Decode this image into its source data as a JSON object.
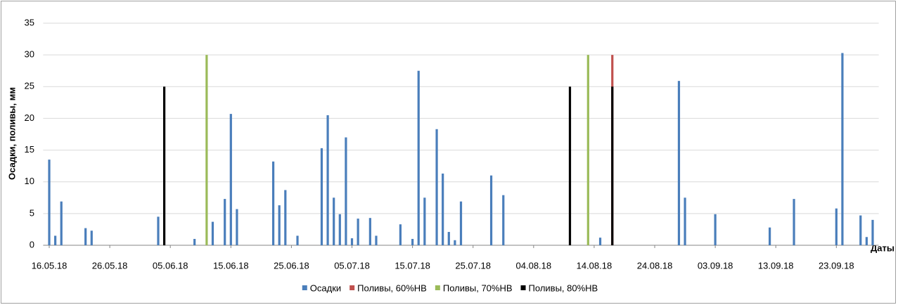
{
  "chart_data": {
    "type": "bar",
    "ylabel": "Осадки, поливы, мм",
    "xlabel": "Даты",
    "xlim": [
      "15.05.18",
      "30.09.18"
    ],
    "xticks": [
      "16.05.18",
      "26.05.18",
      "05.06.18",
      "15.06.18",
      "25.06.18",
      "05.07.18",
      "15.07.18",
      "25.07.18",
      "04.08.18",
      "14.08.18",
      "24.08.18",
      "03.09.18",
      "13.09.18",
      "23.09.18"
    ],
    "ylim": [
      0,
      35
    ],
    "yticks": [
      0,
      5,
      10,
      15,
      20,
      25,
      30,
      35
    ],
    "grid": true,
    "legend": "bottom",
    "series": [
      {
        "name": "Осадки",
        "color": "#4a7ebb",
        "x": [
          "16.05.18",
          "17.05.18",
          "18.05.18",
          "22.05.18",
          "23.05.18",
          "03.06.18",
          "09.06.18",
          "12.06.18",
          "14.06.18",
          "15.06.18",
          "16.06.18",
          "22.06.18",
          "23.06.18",
          "24.06.18",
          "26.06.18",
          "30.06.18",
          "01.07.18",
          "02.07.18",
          "03.07.18",
          "04.07.18",
          "05.07.18",
          "06.07.18",
          "08.07.18",
          "09.07.18",
          "13.07.18",
          "15.07.18",
          "16.07.18",
          "17.07.18",
          "19.07.18",
          "20.07.18",
          "21.07.18",
          "22.07.18",
          "23.07.18",
          "28.07.18",
          "30.07.18",
          "15.08.18",
          "28.08.18",
          "29.08.18",
          "03.09.18",
          "12.09.18",
          "16.09.18",
          "23.09.18",
          "24.09.18",
          "27.09.18",
          "28.09.18",
          "29.09.18"
        ],
        "values": [
          13.5,
          1.5,
          6.9,
          2.7,
          2.3,
          4.5,
          1.0,
          3.7,
          7.3,
          20.7,
          5.7,
          13.2,
          6.3,
          8.7,
          1.5,
          15.3,
          20.5,
          7.5,
          4.9,
          17.0,
          1.1,
          4.2,
          4.3,
          1.5,
          3.3,
          1.0,
          27.5,
          7.5,
          18.3,
          11.3,
          2.1,
          0.8,
          6.9,
          11.0,
          7.9,
          1.2,
          25.9,
          7.5,
          4.9,
          2.8,
          7.3,
          5.8,
          30.3,
          4.7,
          1.3,
          4.0
        ]
      },
      {
        "name": "Поливы, 60%НВ",
        "color": "#c0504d",
        "x": [
          "17.08.18"
        ],
        "values": [
          30
        ]
      },
      {
        "name": "Поливы, 70%НВ",
        "color": "#9bbb59",
        "x": [
          "11.06.18",
          "13.08.18"
        ],
        "values": [
          30,
          30
        ]
      },
      {
        "name": "Поливы, 80%НВ",
        "color": "#000000",
        "x": [
          "04.06.18",
          "10.08.18",
          "17.08.18"
        ],
        "values": [
          25,
          25,
          25
        ]
      }
    ]
  }
}
